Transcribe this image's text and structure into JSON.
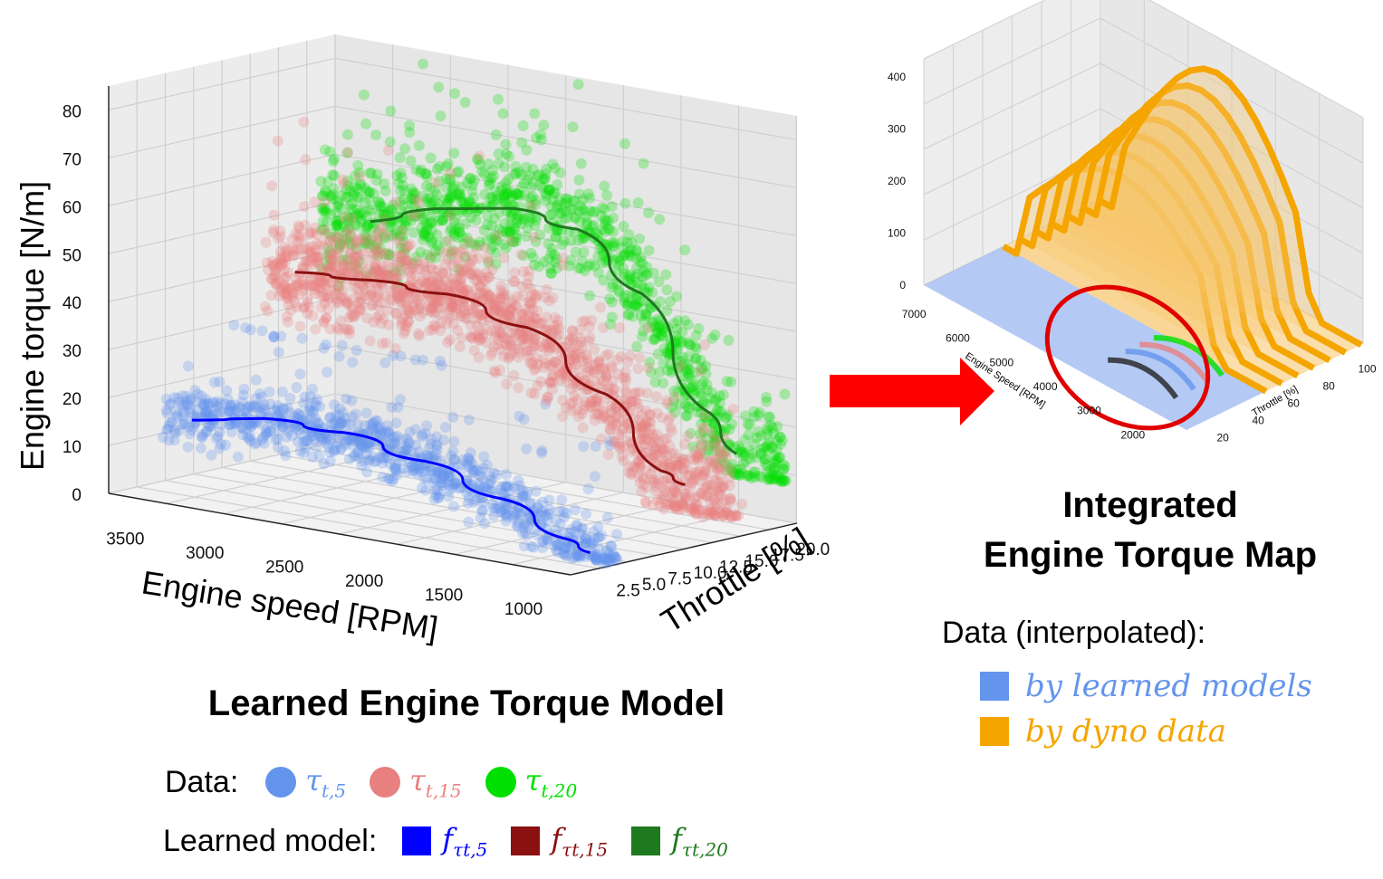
{
  "chart_data": [
    {
      "type": "scatter",
      "title": "Learned Engine Torque Model",
      "xlabel": "Engine speed [RPM]",
      "ylabel": "Throttle [%]",
      "zlabel": "Engine torque [N/m]",
      "x_ticks": [
        "3500",
        "3000",
        "2500",
        "2000",
        "1500",
        "1000"
      ],
      "y_ticks": [
        "2.5",
        "5.0",
        "7.5",
        "10.0",
        "12.5",
        "15.0",
        "17.5",
        "20.0"
      ],
      "z_ticks": [
        "0",
        "10",
        "20",
        "30",
        "40",
        "50",
        "60",
        "70",
        "80"
      ],
      "legend_data_label": "Data:",
      "legend_model_label": "Learned model:",
      "series": [
        {
          "name": "τ_t,5",
          "sym": "τ",
          "sub": "t,5",
          "kind": "data",
          "color": "#6495ED",
          "throttle": 5,
          "rpm_range": [
            800,
            3600
          ],
          "torque_range": [
            0,
            35
          ]
        },
        {
          "name": "τ_t,15",
          "sym": "τ",
          "sub": "t,15",
          "kind": "data",
          "color": "#E88080",
          "throttle": 15,
          "rpm_range": [
            700,
            3600
          ],
          "torque_range": [
            5,
            72
          ]
        },
        {
          "name": "τ_t,20",
          "sym": "τ",
          "sub": "t,20",
          "kind": "data",
          "color": "#00E000",
          "throttle": 20,
          "rpm_range": [
            700,
            3600
          ],
          "torque_range": [
            10,
            88
          ]
        },
        {
          "name": "f_τt,5",
          "sym": "f",
          "sub": "τt,5",
          "kind": "model",
          "color": "#0000FF",
          "throttle": 5,
          "rpm": [
            3450,
            3000,
            2500,
            2000,
            1500,
            1100,
            950
          ],
          "torque": [
            14,
            17,
            17,
            14,
            9,
            3,
            1
          ]
        },
        {
          "name": "f_τt,15",
          "sym": "f",
          "sub": "τt,15",
          "kind": "model",
          "color": "#8B1010",
          "throttle": 15,
          "rpm": [
            3450,
            3000,
            2500,
            2000,
            1500,
            1150,
            1000
          ],
          "torque": [
            40,
            41,
            41,
            37,
            26,
            12,
            10
          ]
        },
        {
          "name": "f_τt,20",
          "sym": "f",
          "sub": "τt,20",
          "kind": "model",
          "color": "#1E7A1E",
          "throttle": 20,
          "rpm": [
            3300,
            2900,
            2400,
            2000,
            1600,
            1200,
            1000
          ],
          "torque": [
            49,
            54,
            57,
            55,
            44,
            22,
            14
          ]
        }
      ]
    },
    {
      "type": "surface",
      "title_line1": "Integrated",
      "title_line2": "Engine Torque Map",
      "xlabel": "Engine Speed [RPM]",
      "ylabel": "Throttle [%]",
      "x_ticks": [
        "7000",
        "6000",
        "5000",
        "4000",
        "3000",
        "2000"
      ],
      "y_ticks": [
        "20",
        "40",
        "60",
        "80",
        "100"
      ],
      "z_ticks": [
        "0",
        "100",
        "200",
        "300",
        "400"
      ],
      "legend_title": "Data (interpolated):",
      "legend": [
        {
          "label": "by learned models",
          "color": "#6495ED"
        },
        {
          "label": "by dyno data",
          "color": "#F5A500"
        }
      ]
    }
  ],
  "arrow_color": "#FF0000",
  "highlight_color": "#E00000"
}
